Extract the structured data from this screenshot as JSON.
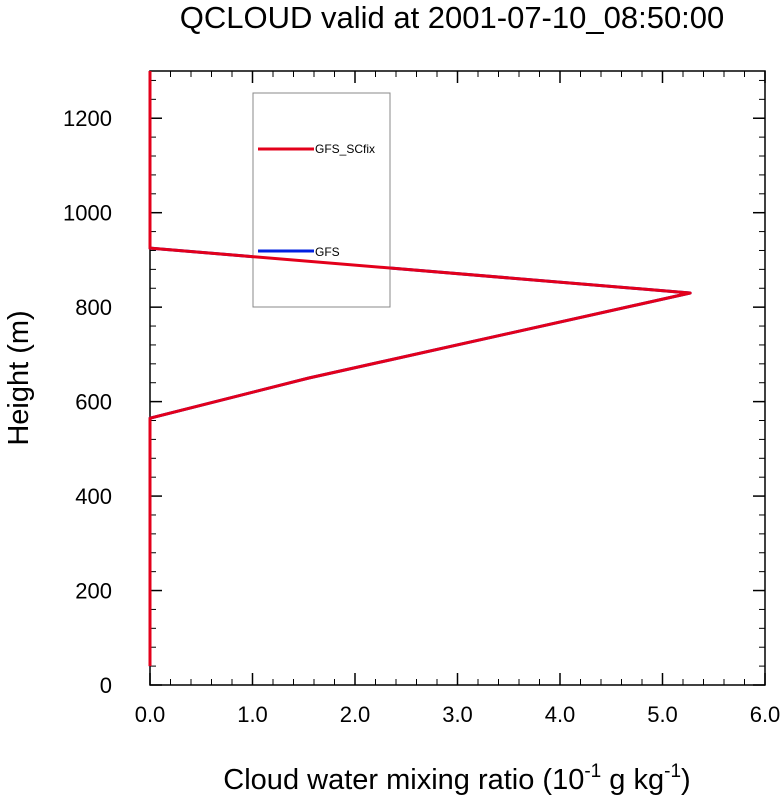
{
  "chart_data": {
    "type": "line",
    "title": "QCLOUD valid at 2001-07-10_08:50:00",
    "xlabel": "Cloud water mixing ratio (10",
    "xlabel_exp": "-1",
    "xlabel_mid": " g kg",
    "xlabel_exp2": "-1",
    "xlabel_end": ")",
    "ylabel": "Height (m)",
    "xlim": [
      0,
      6
    ],
    "ylim": [
      0,
      1300
    ],
    "xticks": [
      "0.0",
      "1.0",
      "2.0",
      "3.0",
      "4.0",
      "5.0",
      "6.0"
    ],
    "yticks": [
      "0",
      "200",
      "400",
      "600",
      "800",
      "1000",
      "1200"
    ],
    "legend_position": "top-left-inside",
    "series": [
      {
        "name": "GFS_SCfix",
        "color": "#e3001b",
        "x": [
          0,
          0,
          0,
          1.55,
          5.27,
          0,
          0
        ],
        "y": [
          40,
          400,
          565,
          650,
          830,
          925,
          1300
        ]
      },
      {
        "name": "GFS",
        "color": "#0020e0",
        "x": [
          0,
          0,
          0,
          1.55,
          5.27,
          0,
          0
        ],
        "y": [
          40,
          400,
          565,
          650,
          830,
          925,
          1300
        ]
      }
    ]
  }
}
